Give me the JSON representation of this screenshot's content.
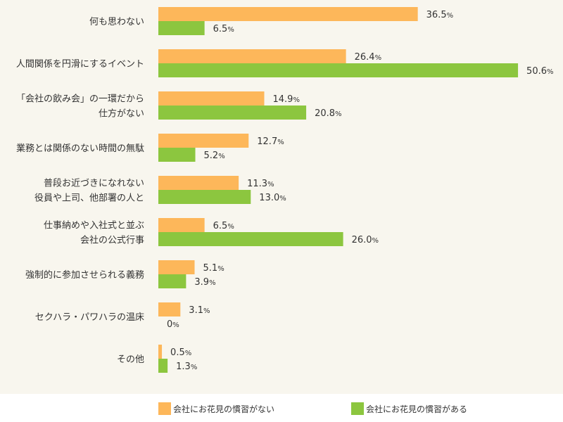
{
  "chart_data": {
    "type": "bar",
    "orientation": "horizontal",
    "title": "",
    "xlabel": "",
    "ylabel": "",
    "xlim": [
      0,
      52
    ],
    "grid": false,
    "legend_position": "bottom",
    "unit_suffix": "%",
    "categories": [
      [
        "何も思わない"
      ],
      [
        "人間関係を円滑にするイベント"
      ],
      [
        "「会社の飲み会」の一環だから",
        "仕方がない"
      ],
      [
        "業務とは関係のない時間の無駄"
      ],
      [
        "普段お近づきになれない",
        "役員や上司、他部署の人と"
      ],
      [
        "仕事納めや入社式と並ぶ",
        "会社の公式行事"
      ],
      [
        "強制的に参加させられる義務"
      ],
      [
        "セクハラ・パワハラの温床"
      ],
      [
        "その他"
      ]
    ],
    "series": [
      {
        "name": "会社にお花見の慣習がない",
        "color": "#fdb75a",
        "values": [
          36.5,
          26.4,
          14.9,
          12.7,
          11.3,
          6.5,
          5.1,
          3.1,
          0.5
        ],
        "labels": [
          "36.5",
          "26.4",
          "14.9",
          "12.7",
          "11.3",
          "6.5",
          "5.1",
          "3.1",
          "0.5"
        ]
      },
      {
        "name": "会社にお花見の慣習がある",
        "color": "#8cc63f",
        "values": [
          6.5,
          50.6,
          20.8,
          5.2,
          13.0,
          26.0,
          3.9,
          0,
          1.3
        ],
        "labels": [
          "6.5",
          "50.6",
          "20.8",
          "5.2",
          "13.0",
          "26.0",
          "3.9",
          "0",
          "1.3"
        ]
      }
    ]
  },
  "legend": {
    "items": [
      {
        "label": "会社にお花見の慣習がない",
        "color": "#fdb75a"
      },
      {
        "label": "会社にお花見の慣習がある",
        "color": "#8cc63f"
      }
    ]
  }
}
